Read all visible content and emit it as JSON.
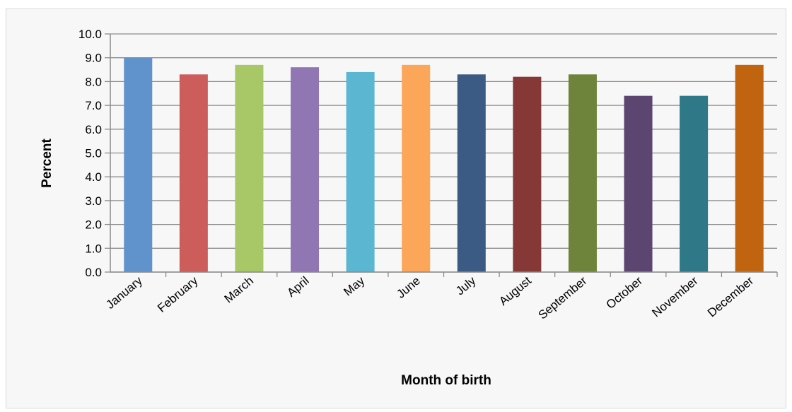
{
  "chart_data": {
    "type": "bar",
    "title": "",
    "xlabel": "Month of birth",
    "ylabel": "Percent",
    "ylim": [
      0,
      10
    ],
    "ytick_step": 1,
    "ytick_decimals": 1,
    "grid": true,
    "legend": "none",
    "categories": [
      "January",
      "February",
      "March",
      "April",
      "May",
      "June",
      "July",
      "August",
      "September",
      "October",
      "November",
      "December"
    ],
    "values": [
      9.0,
      8.3,
      8.7,
      8.6,
      8.4,
      8.7,
      8.3,
      8.2,
      8.3,
      7.4,
      7.4,
      8.7
    ],
    "colors": [
      "#6093cc",
      "#cd5d5b",
      "#a8c766",
      "#9176b4",
      "#5bb7d1",
      "#fca65a",
      "#3b5a84",
      "#853836",
      "#6e843b",
      "#5c4671",
      "#2f7887",
      "#c1640f"
    ]
  }
}
